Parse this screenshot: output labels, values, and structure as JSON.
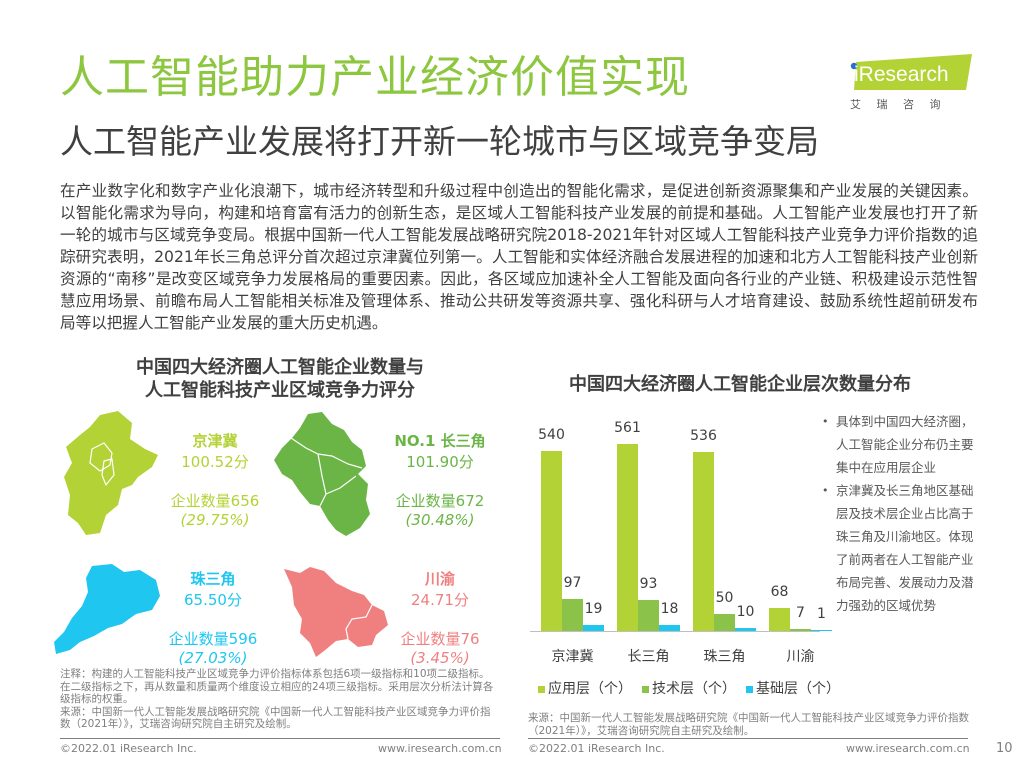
{
  "header": {
    "title": "人工智能助力产业经济价值实现",
    "subtitle": "人工智能产业发展将打开新一轮城市与区域竞争变局",
    "logo_text": "iResearch",
    "logo_cn": "艾 瑞 咨 询"
  },
  "body_text": "在产业数字化和数字产业化浪潮下，城市经济转型和升级过程中创造出的智能化需求，是促进创新资源聚集和产业发展的关键因素。以智能化需求为导向，构建和培育富有活力的创新生态，是区域人工智能科技产业发展的前提和基础。人工智能产业发展也打开了新一轮的城市与区域竞争变局。根据中国新一代人工智能发展战略研究院2018-2021年针对区域人工智能科技产业竞争力评价指数的追踪研究表明，2021年长三角总评分首次超过京津冀位列第一。人工智能和实体经济融合发展进程的加速和北方人工智能科技产业创新资源的“南移”是改变区域竞争力发展格局的重要因素。因此，各区域应加速补全人工智能及面向各行业的产业链、积极建设示范性智慧应用场景、前瞻布局人工智能相关标准及管理体系、推动公共研发等资源共享、强化科研与人才培育建设、鼓励系统性超前研发布局等以把握人工智能产业发展的重大历史机遇。",
  "left_panel": {
    "title_line1": "中国四大经济圈人工智能企业数量与",
    "title_line2": "人工智能科技产业区域竞争力评分",
    "regions": [
      {
        "name": "京津冀",
        "score": "100.52分",
        "count": "企业数量656",
        "pct": "(29.75%)",
        "color": "#b3d235"
      },
      {
        "name": "NO.1 长三角",
        "score": "101.90分",
        "count": "企业数量672",
        "pct": "(30.48%)",
        "color": "#6ab545"
      },
      {
        "name": "珠三角",
        "score": "65.50分",
        "count": "企业数量596",
        "pct": "(27.03%)",
        "color": "#1ec6f0"
      },
      {
        "name": "川渝",
        "score": "24.71分",
        "count": "企业数量76",
        "pct": "(3.45%)",
        "color": "#f08080"
      }
    ],
    "note": "注释：构建的人工智能科技产业区域竞争力评价指标体系包括6项一级指标和10项二级指标。在二级指标之下，再从数量和质量两个维度设立相应的24项三级指标。采用层次分析法计算各级指标的权重。",
    "source": "来源：中国新一代人工智能发展战略研究院《中国新一代人工智能科技产业区域竞争力评价指数（2021年）》，艾瑞咨询研究院自主研究及绘制。"
  },
  "right_panel": {
    "bullets": [
      "具体到中国四大经济圈，人工智能企业分布仍主要集中在应用层企业",
      "京津冀及长三角地区基础层及技术层企业占比高于珠三角及川渝地区。体现了前两者在人工智能产业布局完善、发展动力及潜力强劲的区域优势"
    ],
    "source": "来源：中国新一代人工智能发展战略研究院《中国新一代人工智能科技产业区域竞争力评价指数（2021年）》，艾瑞咨询研究院自主研究及绘制。"
  },
  "chart_data": {
    "type": "bar",
    "title": "中国四大经济圈人工智能企业层次数量分布",
    "categories": [
      "京津冀",
      "长三角",
      "珠三角",
      "川渝"
    ],
    "series": [
      {
        "name": "应用层（个）",
        "values": [
          540,
          561,
          536,
          68
        ],
        "color": "#b3d235"
      },
      {
        "name": "技术层（个）",
        "values": [
          97,
          93,
          50,
          7
        ],
        "color": "#8bc34a"
      },
      {
        "name": "基础层（个）",
        "values": [
          19,
          18,
          10,
          1
        ],
        "color": "#1ec6f0"
      }
    ],
    "xlabel": "",
    "ylabel": "",
    "grid": false,
    "legend_position": "bottom",
    "data_labels": true
  },
  "footer": {
    "left_copyright": "©2022.01 iResearch Inc.",
    "left_url": "www.iresearch.com.cn",
    "right_copyright": "©2022.01 iResearch Inc.",
    "right_url": "www.iresearch.com.cn",
    "page_number": "10"
  }
}
